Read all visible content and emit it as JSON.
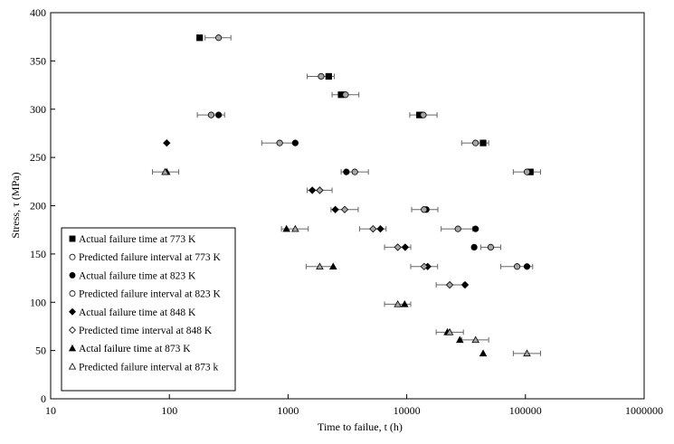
{
  "chart_data": {
    "type": "scatter",
    "title": "",
    "xlabel": "Time  to  failue,  t (h)",
    "ylabel": "Stress, τ (MPa)",
    "xscale": "log",
    "xlim": [
      10,
      1000000
    ],
    "ylim": [
      0,
      400
    ],
    "xticks": [
      10,
      100,
      1000,
      10000,
      100000,
      1000000
    ],
    "xtick_labels": [
      "10",
      "100",
      "1000",
      "10000",
      "100000",
      "1000000"
    ],
    "yticks": [
      0,
      50,
      100,
      150,
      200,
      250,
      300,
      350,
      400
    ],
    "ytick_labels": [
      "0",
      "50",
      "100",
      "150",
      "200",
      "250",
      "300",
      "350",
      "400"
    ],
    "grid": false,
    "legend_position": "bottom-left",
    "series": [
      {
        "name": "Actual failure time at 773 K",
        "marker": "square",
        "fill": "filled",
        "color": "#000000",
        "points": [
          [
            180,
            374
          ],
          [
            2200,
            334
          ],
          [
            2800,
            315
          ],
          [
            12800,
            294
          ],
          [
            44000,
            265
          ],
          [
            110000,
            235
          ]
        ]
      },
      {
        "name": "Predicted  failure interval at 773 K",
        "marker": "circle",
        "fill": "#a6a6a6",
        "color": "#000000",
        "points": [
          {
            "x": 260,
            "y": 374,
            "lo": 200,
            "hi": 330
          },
          {
            "x": 1900,
            "y": 334,
            "lo": 1450,
            "hi": 2450
          },
          {
            "x": 3050,
            "y": 315,
            "lo": 2350,
            "hi": 3950
          },
          {
            "x": 13800,
            "y": 294,
            "lo": 10600,
            "hi": 18000
          },
          {
            "x": 38000,
            "y": 265,
            "lo": 29000,
            "hi": 49000
          },
          {
            "x": 103000,
            "y": 235,
            "lo": 79000,
            "hi": 134000
          }
        ]
      },
      {
        "name": "Actual failure time at 823 K",
        "marker": "circle",
        "fill": "filled",
        "color": "#000000",
        "points": [
          [
            260,
            294
          ],
          [
            1150,
            265
          ],
          [
            3100,
            235
          ],
          [
            14600,
            196
          ],
          [
            38000,
            176
          ],
          [
            37000,
            157
          ],
          [
            103000,
            137
          ]
        ]
      },
      {
        "name": "Predicted failure interval at 823 K",
        "marker": "circle",
        "fill": "#a6a6a6",
        "color": "#000000",
        "points": [
          {
            "x": 225,
            "y": 294,
            "lo": 172,
            "hi": 292
          },
          {
            "x": 850,
            "y": 265,
            "lo": 600,
            "hi": 1150
          },
          {
            "x": 3650,
            "y": 235,
            "lo": 2800,
            "hi": 4750
          },
          {
            "x": 14000,
            "y": 196,
            "lo": 11000,
            "hi": 18300
          },
          {
            "x": 27000,
            "y": 176,
            "lo": 19500,
            "hi": 36000
          },
          {
            "x": 51000,
            "y": 157,
            "lo": 42000,
            "hi": 62000
          },
          {
            "x": 85000,
            "y": 137,
            "lo": 62000,
            "hi": 115000
          }
        ]
      },
      {
        "name": "Actual failure time at 848 K",
        "marker": "diamond",
        "fill": "filled",
        "color": "#000000",
        "points": [
          [
            95,
            265
          ],
          [
            1600,
            216
          ],
          [
            2500,
            196
          ],
          [
            6000,
            176
          ],
          [
            9700,
            157
          ],
          [
            15000,
            137
          ],
          [
            31000,
            118
          ]
        ]
      },
      {
        "name": "Predicted time interval at 848 K",
        "marker": "diamond",
        "fill": "#a6a6a6",
        "color": "#000000",
        "points": [
          {
            "x": 1850,
            "y": 216,
            "lo": 1450,
            "hi": 2350
          },
          {
            "x": 3000,
            "y": 196,
            "lo": 2300,
            "hi": 3900
          },
          {
            "x": 5200,
            "y": 176,
            "lo": 4000,
            "hi": 6700
          },
          {
            "x": 8400,
            "y": 157,
            "lo": 6500,
            "hi": 10800
          },
          {
            "x": 14000,
            "y": 137,
            "lo": 10800,
            "hi": 18200
          },
          {
            "x": 23000,
            "y": 118,
            "lo": 17700,
            "hi": 30000
          }
        ]
      },
      {
        "name": "Actal failure time at 873 K",
        "marker": "triangle",
        "fill": "filled",
        "color": "#000000",
        "points": [
          [
            95,
            235
          ],
          [
            970,
            176
          ],
          [
            2400,
            137
          ],
          [
            9600,
            98
          ],
          [
            22000,
            69
          ],
          [
            28000,
            61
          ],
          [
            44000,
            47
          ]
        ]
      },
      {
        "name": "Predicted failure interval at 873 k",
        "marker": "triangle",
        "fill": "#a6a6a6",
        "color": "#000000",
        "points": [
          {
            "x": 92,
            "y": 235,
            "lo": 72,
            "hi": 120
          },
          {
            "x": 1150,
            "y": 176,
            "lo": 880,
            "hi": 1480
          },
          {
            "x": 1850,
            "y": 137,
            "lo": 1420,
            "hi": 2400
          },
          {
            "x": 8400,
            "y": 98,
            "lo": 6500,
            "hi": 10800
          },
          {
            "x": 23000,
            "y": 69,
            "lo": 17700,
            "hi": 30000
          },
          {
            "x": 38000,
            "y": 61,
            "lo": 29000,
            "hi": 49000
          },
          {
            "x": 103000,
            "y": 47,
            "lo": 79000,
            "hi": 134000
          }
        ]
      }
    ]
  }
}
